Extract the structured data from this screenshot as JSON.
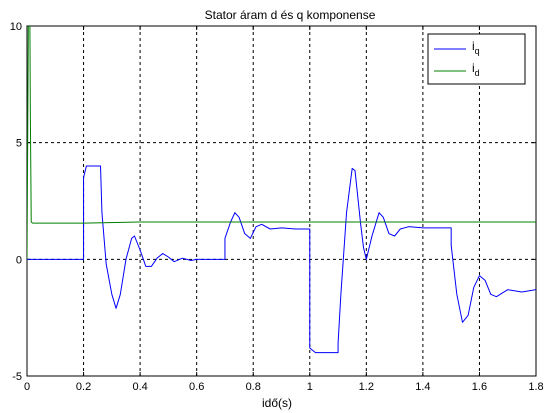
{
  "chart_data": {
    "type": "line",
    "title": "Stator áram d és q komponense",
    "xlabel": "idő(s)",
    "ylabel": "",
    "xlim": [
      0,
      1.8
    ],
    "ylim": [
      -5,
      10
    ],
    "xticks": [
      "0",
      "0.2",
      "0.4",
      "0.6",
      "0.8",
      "1",
      "1.2",
      "1.4",
      "1.6",
      "1.8"
    ],
    "yticks": [
      "-5",
      "0",
      "5",
      "10"
    ],
    "grid": true,
    "legend_position": "top-right",
    "series": [
      {
        "name": "i",
        "subscript": "q",
        "color": "#0000ff",
        "points": [
          [
            0,
            0
          ],
          [
            0.2,
            0
          ],
          [
            0.2,
            3.5
          ],
          [
            0.21,
            4.0
          ],
          [
            0.26,
            4.0
          ],
          [
            0.265,
            2.0
          ],
          [
            0.28,
            -0.2
          ],
          [
            0.3,
            -1.5
          ],
          [
            0.315,
            -2.1
          ],
          [
            0.33,
            -1.5
          ],
          [
            0.35,
            0.0
          ],
          [
            0.37,
            0.9
          ],
          [
            0.38,
            1.0
          ],
          [
            0.4,
            0.4
          ],
          [
            0.42,
            -0.3
          ],
          [
            0.44,
            -0.3
          ],
          [
            0.46,
            0.05
          ],
          [
            0.48,
            0.25
          ],
          [
            0.5,
            0.1
          ],
          [
            0.52,
            -0.1
          ],
          [
            0.55,
            0.05
          ],
          [
            0.58,
            -0.05
          ],
          [
            0.6,
            0.0
          ],
          [
            0.7,
            0.0
          ],
          [
            0.7,
            0.9
          ],
          [
            0.72,
            1.6
          ],
          [
            0.735,
            2.0
          ],
          [
            0.75,
            1.8
          ],
          [
            0.77,
            1.1
          ],
          [
            0.79,
            0.9
          ],
          [
            0.81,
            1.4
          ],
          [
            0.83,
            1.5
          ],
          [
            0.86,
            1.3
          ],
          [
            0.9,
            1.35
          ],
          [
            0.95,
            1.3
          ],
          [
            1.0,
            1.3
          ],
          [
            1.0,
            -3.8
          ],
          [
            1.02,
            -4.0
          ],
          [
            1.1,
            -4.0
          ],
          [
            1.1,
            -3.6
          ],
          [
            1.11,
            -1.5
          ],
          [
            1.13,
            2.0
          ],
          [
            1.15,
            3.9
          ],
          [
            1.16,
            3.8
          ],
          [
            1.18,
            1.5
          ],
          [
            1.19,
            0.5
          ],
          [
            1.2,
            0.0
          ],
          [
            1.22,
            1.0
          ],
          [
            1.245,
            2.0
          ],
          [
            1.26,
            1.8
          ],
          [
            1.28,
            1.1
          ],
          [
            1.3,
            1.0
          ],
          [
            1.32,
            1.3
          ],
          [
            1.35,
            1.4
          ],
          [
            1.4,
            1.35
          ],
          [
            1.5,
            1.35
          ],
          [
            1.5,
            0.6
          ],
          [
            1.52,
            -1.5
          ],
          [
            1.54,
            -2.7
          ],
          [
            1.56,
            -2.4
          ],
          [
            1.58,
            -1.2
          ],
          [
            1.6,
            -0.7
          ],
          [
            1.62,
            -0.9
          ],
          [
            1.64,
            -1.5
          ],
          [
            1.66,
            -1.6
          ],
          [
            1.7,
            -1.3
          ],
          [
            1.75,
            -1.4
          ],
          [
            1.8,
            -1.3
          ]
        ]
      },
      {
        "name": "i",
        "subscript": "d",
        "color": "#008000",
        "points": [
          [
            0,
            0
          ],
          [
            0.005,
            10.5
          ],
          [
            0.01,
            10.5
          ],
          [
            0.012,
            6.0
          ],
          [
            0.015,
            1.6
          ],
          [
            0.02,
            1.55
          ],
          [
            0.1,
            1.55
          ],
          [
            0.2,
            1.55
          ],
          [
            0.4,
            1.6
          ],
          [
            0.6,
            1.6
          ],
          [
            0.8,
            1.6
          ],
          [
            1.0,
            1.6
          ],
          [
            1.2,
            1.6
          ],
          [
            1.4,
            1.6
          ],
          [
            1.6,
            1.6
          ],
          [
            1.8,
            1.6
          ]
        ]
      }
    ]
  }
}
